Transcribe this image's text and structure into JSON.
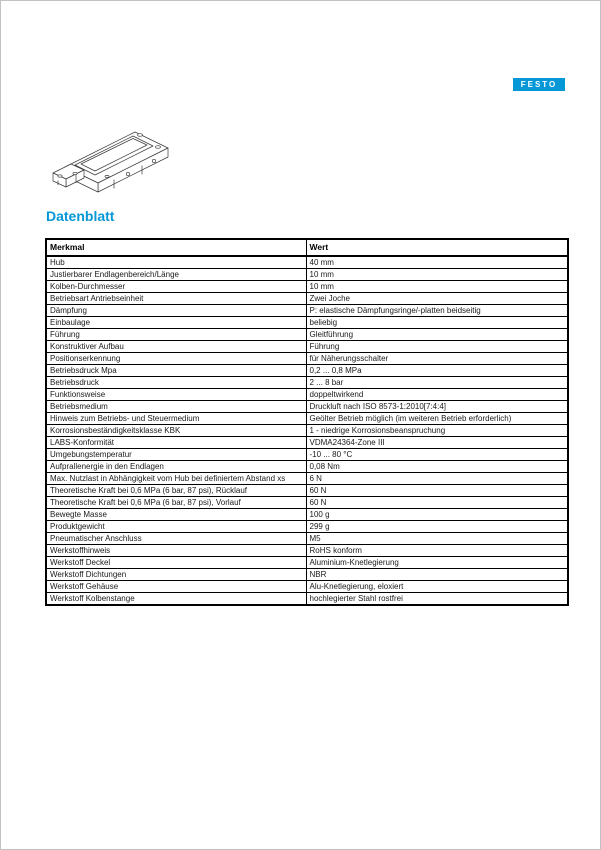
{
  "page": {
    "section_title": "Datenblatt"
  },
  "logo": {
    "text": "FESTO",
    "color": "#0697d6"
  },
  "table": {
    "headers": [
      "Merkmal",
      "Wert"
    ],
    "rows": [
      {
        "label": "Hub",
        "value": "40 mm"
      },
      {
        "label": "Justierbarer Endlagenbereich/Länge",
        "value": "10 mm"
      },
      {
        "label": "Kolben-Durchmesser",
        "value": "10 mm"
      },
      {
        "label": "Betriebsart Antriebseinheit",
        "value": "Zwei Joche"
      },
      {
        "label": "Dämpfung",
        "value": "P: elastische Dämpfungsringe/-platten beidseitig"
      },
      {
        "label": "Einbaulage",
        "value": "beliebig"
      },
      {
        "label": "Führung",
        "value": "Gleitführung"
      },
      {
        "label": "Konstruktiver Aufbau",
        "value": "Führung"
      },
      {
        "label": "Positionserkennung",
        "value": "für Näherungsschalter"
      },
      {
        "label": "Betriebsdruck Mpa",
        "value": "0,2 ... 0,8 MPa"
      },
      {
        "label": "Betriebsdruck",
        "value": "2 ... 8 bar"
      },
      {
        "label": "Funktionsweise",
        "value": "doppeltwirkend"
      },
      {
        "label": "Betriebsmedium",
        "value": "Druckluft nach ISO 8573-1:2010[7:4:4]"
      },
      {
        "label": "Hinweis zum Betriebs- und Steuermedium",
        "value": "Geölter Betrieb möglich (im weiteren Betrieb erforderlich)"
      },
      {
        "label": "Korrosionsbeständigkeitsklasse KBK",
        "value": "1 - niedrige Korrosionsbeanspruchung"
      },
      {
        "label": "LABS-Konformität",
        "value": "VDMA24364-Zone III"
      },
      {
        "label": "Umgebungstemperatur",
        "value": "-10 ... 80 °C"
      },
      {
        "label": "Aufprallenergie in den Endlagen",
        "value": "0,08 Nm"
      },
      {
        "label": "Max. Nutzlast in Abhängigkeit vom Hub bei definiertem Abstand xs",
        "value": "6 N"
      },
      {
        "label": "Theoretische Kraft bei 0,6 MPa (6 bar, 87 psi), Rücklauf",
        "value": "60 N"
      },
      {
        "label": "Theoretische Kraft bei 0,6 MPa (6 bar, 87 psi), Vorlauf",
        "value": "60 N"
      },
      {
        "label": "Bewegte Masse",
        "value": "100 g"
      },
      {
        "label": "Produktgewicht",
        "value": "299 g"
      },
      {
        "label": "Pneumatischer Anschluss",
        "value": "M5"
      },
      {
        "label": "Werkstoffhinweis",
        "value": "RoHS konform"
      },
      {
        "label": "Werkstoff Deckel",
        "value": "Aluminium-Knetlegierung"
      },
      {
        "label": "Werkstoff Dichtungen",
        "value": "NBR"
      },
      {
        "label": "Werkstoff Gehäuse",
        "value": "Alu-Knetlegierung, eloxiert"
      },
      {
        "label": "Werkstoff Kolbenstange",
        "value": "hochlegierter Stahl rostfrei"
      }
    ]
  }
}
